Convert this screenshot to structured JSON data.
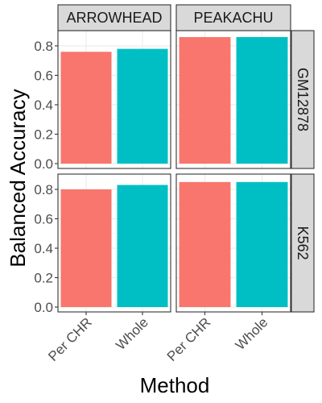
{
  "chart_data": {
    "type": "bar",
    "xlabel": "Method",
    "ylabel": "Balanced Accuracy",
    "categories": [
      "Per CHR",
      "Whole"
    ],
    "col_facets": [
      "ARROWHEAD",
      "PEAKACHU"
    ],
    "row_facets": [
      "GM12878",
      "K562"
    ],
    "ylim": [
      0,
      0.9
    ],
    "yticks": [
      0.0,
      0.2,
      0.4,
      0.6,
      0.8
    ],
    "ytick_labels": [
      "0.0",
      "0.2",
      "0.4",
      "0.6",
      "0.8"
    ],
    "bar_colors": [
      "#F8766D",
      "#00BFC4"
    ],
    "grid": true,
    "panels": [
      {
        "row": "GM12878",
        "col": "ARROWHEAD",
        "values": [
          0.76,
          0.78
        ]
      },
      {
        "row": "GM12878",
        "col": "PEAKACHU",
        "values": [
          0.86,
          0.86
        ]
      },
      {
        "row": "K562",
        "col": "ARROWHEAD",
        "values": [
          0.8,
          0.83
        ]
      },
      {
        "row": "K562",
        "col": "PEAKACHU",
        "values": [
          0.85,
          0.85
        ]
      }
    ]
  }
}
